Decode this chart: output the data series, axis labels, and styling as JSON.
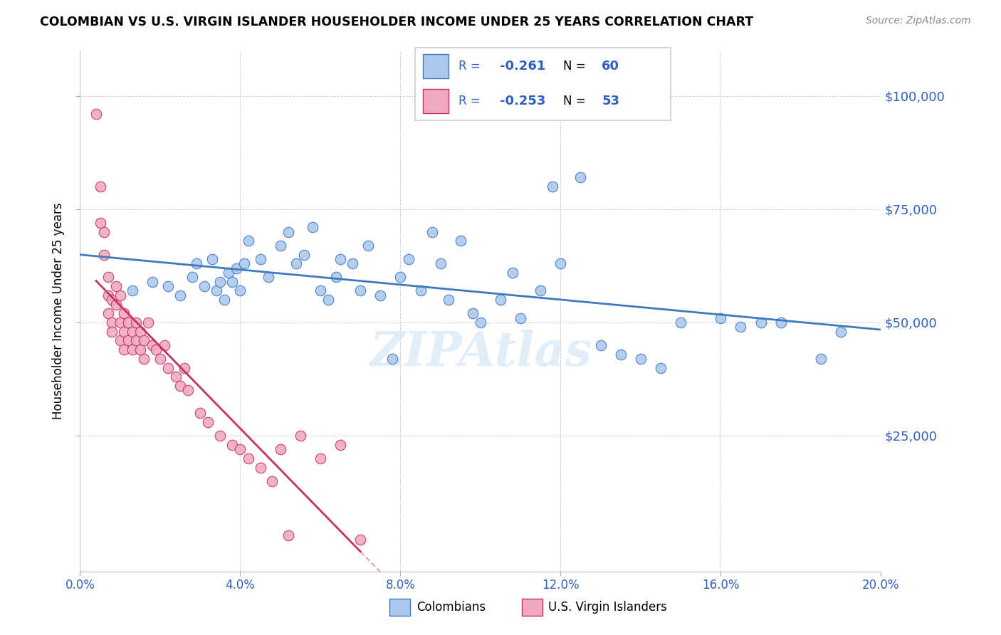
{
  "title": "COLOMBIAN VS U.S. VIRGIN ISLANDER HOUSEHOLDER INCOME UNDER 25 YEARS CORRELATION CHART",
  "source": "Source: ZipAtlas.com",
  "ylabel": "Householder Income Under 25 years",
  "xlim": [
    0.0,
    0.2
  ],
  "ylim": [
    -5000,
    110000
  ],
  "xticks": [
    0.0,
    0.04,
    0.08,
    0.12,
    0.16,
    0.2
  ],
  "xtick_labels": [
    "0.0%",
    "4.0%",
    "8.0%",
    "12.0%",
    "16.0%",
    "20.0%"
  ],
  "ytick_labels": [
    "$25,000",
    "$50,000",
    "$75,000",
    "$100,000"
  ],
  "ytick_values": [
    25000,
    50000,
    75000,
    100000
  ],
  "legend_r_colombians": "-0.261",
  "legend_n_colombians": "60",
  "legend_r_virgin": "-0.253",
  "legend_n_virgin": "53",
  "colombian_color": "#adc8ed",
  "virgin_color": "#f0aac0",
  "trend_colombian_color": "#3d7abf",
  "trend_virgin_color": "#c83060",
  "legend_text_color": "#3060c0",
  "watermark": "ZIPAtlas",
  "colombians_x": [
    0.013,
    0.018,
    0.022,
    0.025,
    0.028,
    0.029,
    0.031,
    0.033,
    0.034,
    0.035,
    0.036,
    0.037,
    0.038,
    0.039,
    0.04,
    0.041,
    0.042,
    0.045,
    0.047,
    0.05,
    0.052,
    0.054,
    0.056,
    0.058,
    0.06,
    0.062,
    0.064,
    0.065,
    0.068,
    0.07,
    0.072,
    0.075,
    0.078,
    0.08,
    0.082,
    0.085,
    0.088,
    0.09,
    0.092,
    0.095,
    0.098,
    0.1,
    0.105,
    0.108,
    0.11,
    0.115,
    0.118,
    0.12,
    0.125,
    0.13,
    0.135,
    0.14,
    0.145,
    0.15,
    0.16,
    0.165,
    0.17,
    0.175,
    0.185,
    0.19
  ],
  "colombians_y": [
    57000,
    59000,
    58000,
    56000,
    60000,
    63000,
    58000,
    64000,
    57000,
    59000,
    55000,
    61000,
    59000,
    62000,
    57000,
    63000,
    68000,
    64000,
    60000,
    67000,
    70000,
    63000,
    65000,
    71000,
    57000,
    55000,
    60000,
    64000,
    63000,
    57000,
    67000,
    56000,
    42000,
    60000,
    64000,
    57000,
    70000,
    63000,
    55000,
    68000,
    52000,
    50000,
    55000,
    61000,
    51000,
    57000,
    80000,
    63000,
    82000,
    45000,
    43000,
    42000,
    40000,
    50000,
    51000,
    49000,
    50000,
    50000,
    42000,
    48000
  ],
  "virgin_x": [
    0.004,
    0.005,
    0.005,
    0.006,
    0.006,
    0.007,
    0.007,
    0.007,
    0.008,
    0.008,
    0.008,
    0.009,
    0.009,
    0.01,
    0.01,
    0.01,
    0.011,
    0.011,
    0.011,
    0.012,
    0.012,
    0.013,
    0.013,
    0.014,
    0.014,
    0.015,
    0.015,
    0.016,
    0.016,
    0.017,
    0.018,
    0.019,
    0.02,
    0.021,
    0.022,
    0.024,
    0.025,
    0.026,
    0.027,
    0.03,
    0.032,
    0.035,
    0.038,
    0.04,
    0.042,
    0.045,
    0.048,
    0.05,
    0.052,
    0.055,
    0.06,
    0.065,
    0.07
  ],
  "virgin_y": [
    96000,
    80000,
    72000,
    70000,
    65000,
    60000,
    56000,
    52000,
    55000,
    50000,
    48000,
    58000,
    54000,
    56000,
    50000,
    46000,
    52000,
    48000,
    44000,
    50000,
    46000,
    48000,
    44000,
    50000,
    46000,
    48000,
    44000,
    46000,
    42000,
    50000,
    45000,
    44000,
    42000,
    45000,
    40000,
    38000,
    36000,
    40000,
    35000,
    30000,
    28000,
    25000,
    23000,
    22000,
    20000,
    18000,
    15000,
    22000,
    3000,
    25000,
    20000,
    23000,
    2000
  ]
}
